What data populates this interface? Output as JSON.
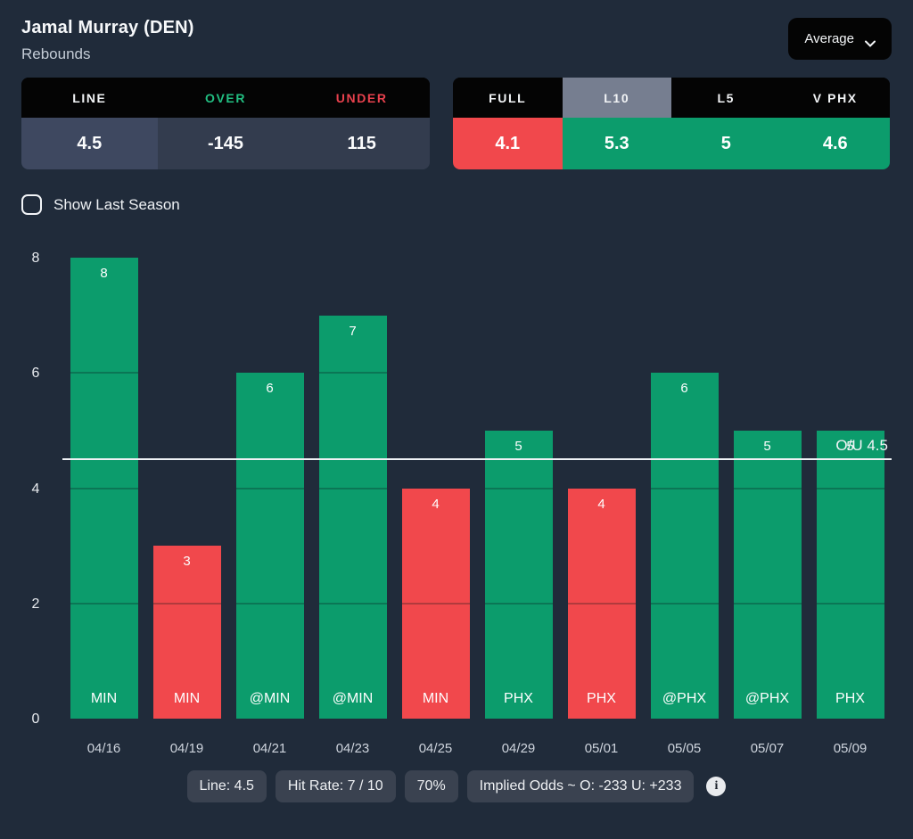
{
  "header": {
    "player": "Jamal Murray (DEN)",
    "stat": "Rebounds",
    "mode_selector": {
      "value": "Average"
    }
  },
  "odds_table": {
    "headers": {
      "line": "LINE",
      "over": "OVER",
      "under": "UNDER"
    },
    "values": {
      "line": "4.5",
      "over": "-145",
      "under": "115"
    }
  },
  "splits_table": {
    "columns": [
      {
        "label": "FULL",
        "value": "4.1",
        "state": "under",
        "selected": false
      },
      {
        "label": "L10",
        "value": "5.3",
        "state": "over",
        "selected": true
      },
      {
        "label": "L5",
        "value": "5",
        "state": "over",
        "selected": false
      },
      {
        "label": "V PHX",
        "value": "4.6",
        "state": "over",
        "selected": false
      }
    ]
  },
  "toggle": {
    "label": "Show Last Season",
    "checked": false
  },
  "chart_data": {
    "type": "bar",
    "title": "",
    "xlabel": "",
    "ylabel": "",
    "x": [
      "04/16",
      "04/19",
      "04/21",
      "04/23",
      "04/25",
      "04/29",
      "05/01",
      "05/05",
      "05/07",
      "05/09"
    ],
    "teams": [
      "MIN",
      "MIN",
      "@MIN",
      "@MIN",
      "MIN",
      "PHX",
      "PHX",
      "@PHX",
      "@PHX",
      "PHX"
    ],
    "values": [
      8,
      3,
      6,
      7,
      4,
      5,
      4,
      6,
      5,
      5
    ],
    "line": 4.5,
    "line_label": "O/U 4.5",
    "ylim": [
      0,
      8
    ],
    "yticks": [
      0,
      2,
      4,
      6,
      8
    ],
    "legend": "none",
    "colors": {
      "over": "#0c9c6c",
      "under": "#f1484c",
      "line": "#eef1f4"
    }
  },
  "footer": {
    "badges": [
      "Line: 4.5",
      "Hit Rate: 7 / 10",
      "70%",
      "Implied Odds ~ O: -233 U: +233"
    ],
    "info_icon": "i"
  },
  "colors": {
    "background": "#202b3a",
    "header_black": "#040404",
    "selected_tab_gray": "#767e90",
    "over_green": "#0c9c6c",
    "under_red": "#f1484c",
    "badge_gray": "#3a4250"
  }
}
